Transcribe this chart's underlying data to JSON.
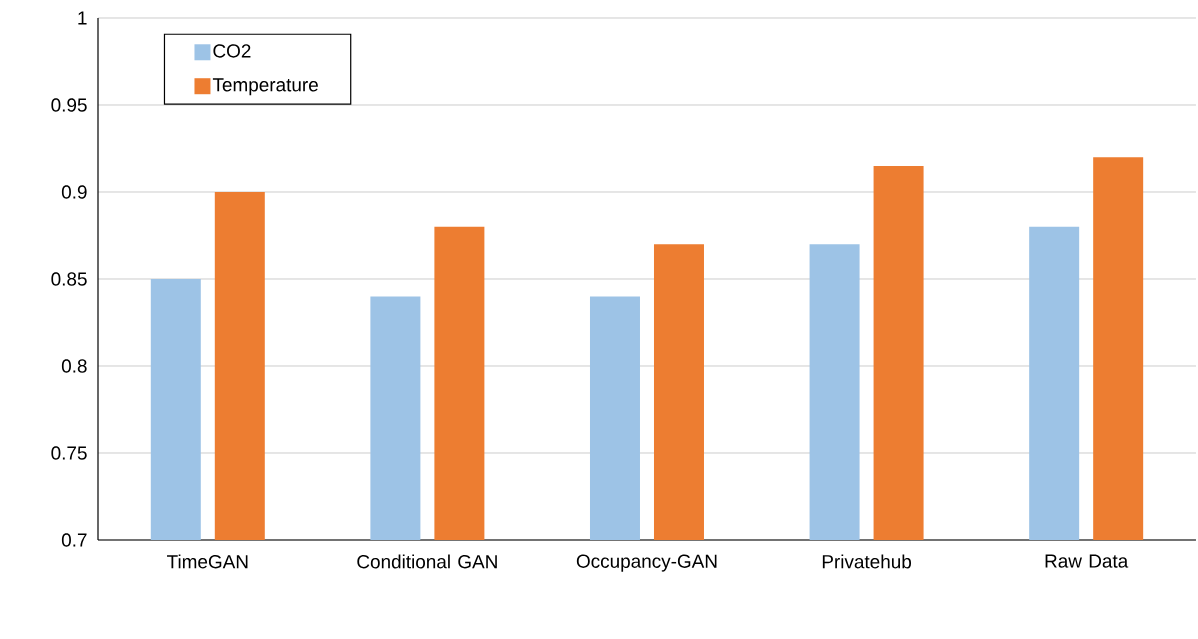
{
  "chart_data": {
    "type": "bar",
    "categories": [
      "TimeGAN",
      "Conditional GAN",
      "Occupancy-GAN",
      "Privatehub",
      "Raw Data"
    ],
    "series": [
      {
        "name": "CO2",
        "color": "#9dc3e6",
        "values": [
          0.85,
          0.84,
          0.84,
          0.87,
          0.88
        ]
      },
      {
        "name": "Temperature",
        "color": "#ed7d31",
        "values": [
          0.9,
          0.88,
          0.87,
          0.915,
          0.92
        ]
      }
    ],
    "ylim": [
      0.7,
      1
    ],
    "yticks": [
      0.7,
      0.75,
      0.8,
      0.85,
      0.9,
      0.95,
      1
    ],
    "grid": "y",
    "legend": "top left"
  }
}
